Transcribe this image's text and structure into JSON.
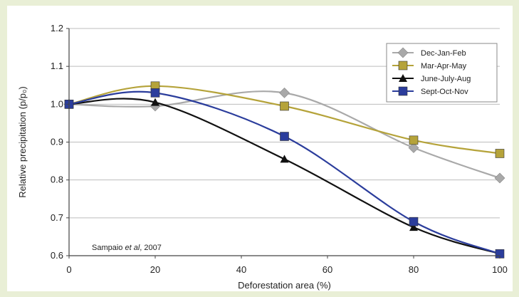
{
  "chart_data": {
    "type": "line",
    "title": "",
    "xlabel": "Deforestation area (%)",
    "ylabel": "Relative precipitation (p/p₀)",
    "xlim": [
      0,
      100
    ],
    "ylim": [
      0.6,
      1.2
    ],
    "xticks": [
      "0",
      "20",
      "40",
      "60",
      "80",
      "100"
    ],
    "yticks": [
      "0.6",
      "0.7",
      "0.8",
      "0.9",
      "1.0",
      "1.1",
      "1.2"
    ],
    "grid": "horizontal",
    "legend_position": "top-right",
    "annotation": "Sampaio et al, 2007",
    "series": [
      {
        "name": "Dec-Jan-Feb",
        "marker": "diamond",
        "color": "#a9a9a9",
        "x": [
          0,
          20,
          50,
          80,
          100
        ],
        "y": [
          1.0,
          0.995,
          1.03,
          0.885,
          0.805
        ]
      },
      {
        "name": "Mar-Apr-May",
        "marker": "square",
        "color": "#b5a33a",
        "x": [
          0,
          20,
          50,
          80,
          100
        ],
        "y": [
          1.0,
          1.048,
          0.995,
          0.905,
          0.87
        ]
      },
      {
        "name": "June-July-Aug",
        "marker": "triangle",
        "color": "#111111",
        "x": [
          0,
          20,
          50,
          80,
          100
        ],
        "y": [
          1.0,
          1.005,
          0.855,
          0.675,
          0.605
        ]
      },
      {
        "name": "Sept-Oct-Nov",
        "marker": "square",
        "color": "#2b3d9c",
        "x": [
          0,
          20,
          50,
          80,
          100
        ],
        "y": [
          1.0,
          1.03,
          0.915,
          0.69,
          0.605
        ]
      }
    ]
  }
}
